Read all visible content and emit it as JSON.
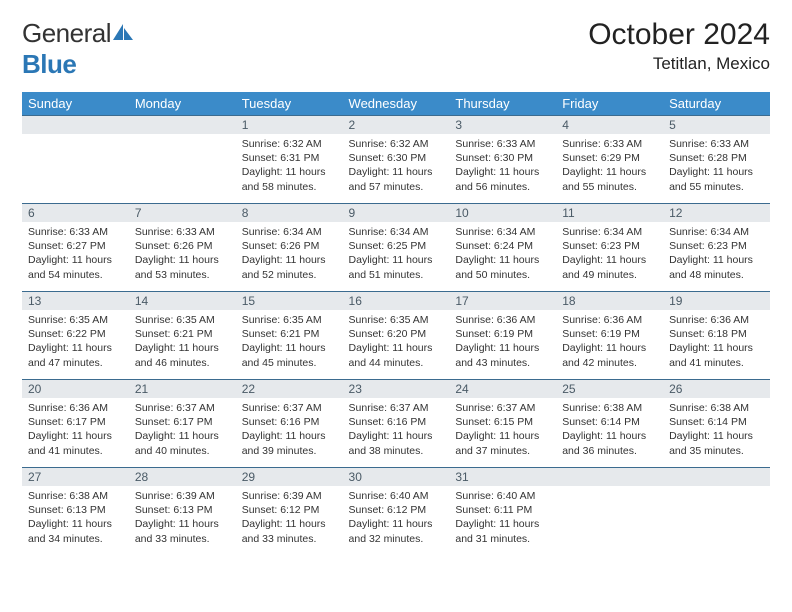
{
  "logo": {
    "text_gray": "General",
    "text_blue": "Blue",
    "icon_color": "#2b77b5"
  },
  "header": {
    "month_title": "October 2024",
    "location": "Tetitlan, Mexico"
  },
  "colors": {
    "header_bg": "#3b8bc9",
    "header_fg": "#ffffff",
    "daynum_bg": "#e6e9ec",
    "daynum_fg": "#4a5a66",
    "row_border": "#3b6b8f",
    "body_text": "#333333"
  },
  "weekdays": [
    "Sunday",
    "Monday",
    "Tuesday",
    "Wednesday",
    "Thursday",
    "Friday",
    "Saturday"
  ],
  "weeks": [
    [
      {
        "empty": true
      },
      {
        "empty": true
      },
      {
        "n": "1",
        "sunrise": "Sunrise: 6:32 AM",
        "sunset": "Sunset: 6:31 PM",
        "daylight": "Daylight: 11 hours and 58 minutes."
      },
      {
        "n": "2",
        "sunrise": "Sunrise: 6:32 AM",
        "sunset": "Sunset: 6:30 PM",
        "daylight": "Daylight: 11 hours and 57 minutes."
      },
      {
        "n": "3",
        "sunrise": "Sunrise: 6:33 AM",
        "sunset": "Sunset: 6:30 PM",
        "daylight": "Daylight: 11 hours and 56 minutes."
      },
      {
        "n": "4",
        "sunrise": "Sunrise: 6:33 AM",
        "sunset": "Sunset: 6:29 PM",
        "daylight": "Daylight: 11 hours and 55 minutes."
      },
      {
        "n": "5",
        "sunrise": "Sunrise: 6:33 AM",
        "sunset": "Sunset: 6:28 PM",
        "daylight": "Daylight: 11 hours and 55 minutes."
      }
    ],
    [
      {
        "n": "6",
        "sunrise": "Sunrise: 6:33 AM",
        "sunset": "Sunset: 6:27 PM",
        "daylight": "Daylight: 11 hours and 54 minutes."
      },
      {
        "n": "7",
        "sunrise": "Sunrise: 6:33 AM",
        "sunset": "Sunset: 6:26 PM",
        "daylight": "Daylight: 11 hours and 53 minutes."
      },
      {
        "n": "8",
        "sunrise": "Sunrise: 6:34 AM",
        "sunset": "Sunset: 6:26 PM",
        "daylight": "Daylight: 11 hours and 52 minutes."
      },
      {
        "n": "9",
        "sunrise": "Sunrise: 6:34 AM",
        "sunset": "Sunset: 6:25 PM",
        "daylight": "Daylight: 11 hours and 51 minutes."
      },
      {
        "n": "10",
        "sunrise": "Sunrise: 6:34 AM",
        "sunset": "Sunset: 6:24 PM",
        "daylight": "Daylight: 11 hours and 50 minutes."
      },
      {
        "n": "11",
        "sunrise": "Sunrise: 6:34 AM",
        "sunset": "Sunset: 6:23 PM",
        "daylight": "Daylight: 11 hours and 49 minutes."
      },
      {
        "n": "12",
        "sunrise": "Sunrise: 6:34 AM",
        "sunset": "Sunset: 6:23 PM",
        "daylight": "Daylight: 11 hours and 48 minutes."
      }
    ],
    [
      {
        "n": "13",
        "sunrise": "Sunrise: 6:35 AM",
        "sunset": "Sunset: 6:22 PM",
        "daylight": "Daylight: 11 hours and 47 minutes."
      },
      {
        "n": "14",
        "sunrise": "Sunrise: 6:35 AM",
        "sunset": "Sunset: 6:21 PM",
        "daylight": "Daylight: 11 hours and 46 minutes."
      },
      {
        "n": "15",
        "sunrise": "Sunrise: 6:35 AM",
        "sunset": "Sunset: 6:21 PM",
        "daylight": "Daylight: 11 hours and 45 minutes."
      },
      {
        "n": "16",
        "sunrise": "Sunrise: 6:35 AM",
        "sunset": "Sunset: 6:20 PM",
        "daylight": "Daylight: 11 hours and 44 minutes."
      },
      {
        "n": "17",
        "sunrise": "Sunrise: 6:36 AM",
        "sunset": "Sunset: 6:19 PM",
        "daylight": "Daylight: 11 hours and 43 minutes."
      },
      {
        "n": "18",
        "sunrise": "Sunrise: 6:36 AM",
        "sunset": "Sunset: 6:19 PM",
        "daylight": "Daylight: 11 hours and 42 minutes."
      },
      {
        "n": "19",
        "sunrise": "Sunrise: 6:36 AM",
        "sunset": "Sunset: 6:18 PM",
        "daylight": "Daylight: 11 hours and 41 minutes."
      }
    ],
    [
      {
        "n": "20",
        "sunrise": "Sunrise: 6:36 AM",
        "sunset": "Sunset: 6:17 PM",
        "daylight": "Daylight: 11 hours and 41 minutes."
      },
      {
        "n": "21",
        "sunrise": "Sunrise: 6:37 AM",
        "sunset": "Sunset: 6:17 PM",
        "daylight": "Daylight: 11 hours and 40 minutes."
      },
      {
        "n": "22",
        "sunrise": "Sunrise: 6:37 AM",
        "sunset": "Sunset: 6:16 PM",
        "daylight": "Daylight: 11 hours and 39 minutes."
      },
      {
        "n": "23",
        "sunrise": "Sunrise: 6:37 AM",
        "sunset": "Sunset: 6:16 PM",
        "daylight": "Daylight: 11 hours and 38 minutes."
      },
      {
        "n": "24",
        "sunrise": "Sunrise: 6:37 AM",
        "sunset": "Sunset: 6:15 PM",
        "daylight": "Daylight: 11 hours and 37 minutes."
      },
      {
        "n": "25",
        "sunrise": "Sunrise: 6:38 AM",
        "sunset": "Sunset: 6:14 PM",
        "daylight": "Daylight: 11 hours and 36 minutes."
      },
      {
        "n": "26",
        "sunrise": "Sunrise: 6:38 AM",
        "sunset": "Sunset: 6:14 PM",
        "daylight": "Daylight: 11 hours and 35 minutes."
      }
    ],
    [
      {
        "n": "27",
        "sunrise": "Sunrise: 6:38 AM",
        "sunset": "Sunset: 6:13 PM",
        "daylight": "Daylight: 11 hours and 34 minutes."
      },
      {
        "n": "28",
        "sunrise": "Sunrise: 6:39 AM",
        "sunset": "Sunset: 6:13 PM",
        "daylight": "Daylight: 11 hours and 33 minutes."
      },
      {
        "n": "29",
        "sunrise": "Sunrise: 6:39 AM",
        "sunset": "Sunset: 6:12 PM",
        "daylight": "Daylight: 11 hours and 33 minutes."
      },
      {
        "n": "30",
        "sunrise": "Sunrise: 6:40 AM",
        "sunset": "Sunset: 6:12 PM",
        "daylight": "Daylight: 11 hours and 32 minutes."
      },
      {
        "n": "31",
        "sunrise": "Sunrise: 6:40 AM",
        "sunset": "Sunset: 6:11 PM",
        "daylight": "Daylight: 11 hours and 31 minutes."
      },
      {
        "empty": true
      },
      {
        "empty": true
      }
    ]
  ]
}
